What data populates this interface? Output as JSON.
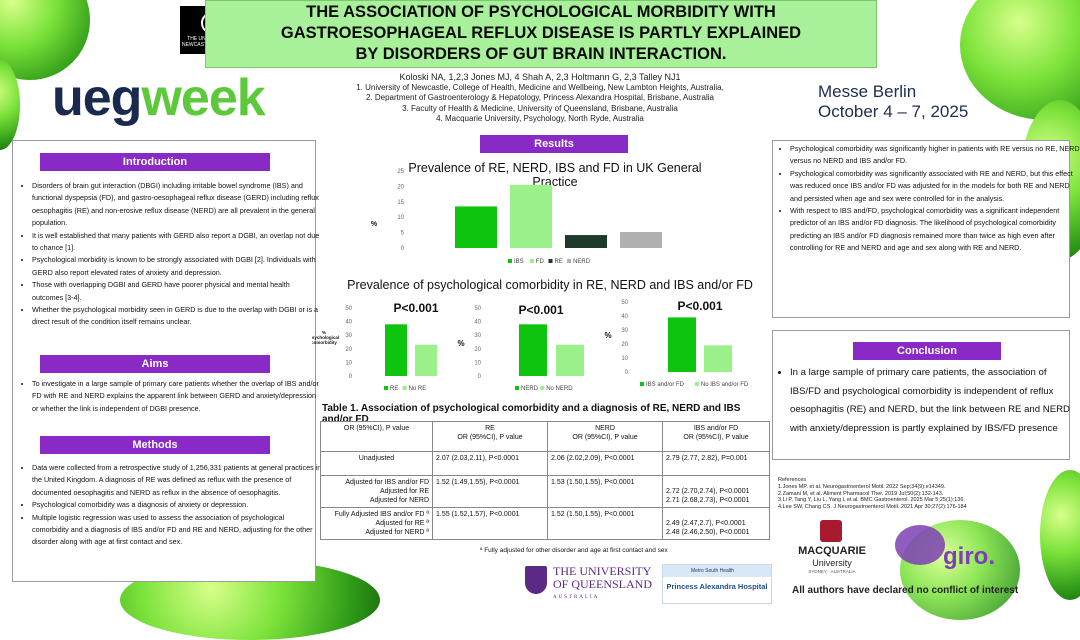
{
  "header": {
    "title_line1": "THE ASSOCIATION OF PSYCHOLOGICAL MORBIDITY WITH",
    "title_line2": "GASTROESOPHAGEAL REFLUX DISEASE IS PARTLY EXPLAINED",
    "title_line3": "BY DISORDERS OF GUT BRAIN INTERACTION.",
    "newcastle_logo_text": "THE UNIVERSITY OF NEWCASTLE AUSTRALIA",
    "ueg": "ueg",
    "week": "week",
    "venue_line1": "Messe Berlin",
    "venue_line2": "October 4 – 7, 2025"
  },
  "authors": {
    "names": "Koloski NA, 1,2,3 Jones MJ, 4 Shah A, 2,3 Holtmann G, 2,3 Talley NJ1",
    "aff1": "1. University of Newcastle, College of Health, Medicine and Wellbeing, New Lambton Heights, Australia,",
    "aff2": "2. Department of Gastroenterology & Hepatology, Princess Alexandra Hospital, Brisbane, Australia",
    "aff3": "3. Faculty of Health & Medicine, University of Queensland, Brisbane, Australia",
    "aff4": "4. Macquarie University, Psychology, North Ryde, Australia"
  },
  "introduction": {
    "heading": "Introduction",
    "bullets": [
      "Disorders of brain gut interaction (DBGI) including irritable bowel syndrome (IBS) and  functional dyspepsia (FD), and gastro-oesophageal reflux disease (GERD) including  reflux oesophagitis (RE) and non-erosive reflux disease (NERD) are all prevalent in the  general population.",
      "It is well established that many patients with GERD also report a DGBI, an overlap not due to chance [1].",
      "Psychological morbidity is known to be strongly associated with DGBI [2]. Individuals  with GERD also report elevated rates of anxiety and depression.",
      "Those with overlapping DGBI and GERD have poorer physical and mental health outcomes [3-4].",
      "Whether the psychological morbidity seen in GERD is due to the overlap with DGBI or  is a direct result of the condition itself remains unclear."
    ]
  },
  "aims": {
    "heading": "Aims",
    "bullets": [
      "To investigate in a large sample of primary care patients whether the overlap of IBS and/or FD with RE and NERD explains the apparent link between GERD and anxiety/depression or whether the link is independent of DGBI presence."
    ]
  },
  "methods": {
    "heading": "Methods",
    "bullets": [
      "Data were collected from a retrospective study of 1,256,331 patients at general practices in the United Kingdom. A diagnosis of RE was defined as reflux with the presence of documented oesophagitis and NERD as reflux in the absence of oesophagitis.",
      "Psychological comorbidity was a diagnosis of anxiety or depression.",
      "Multiple logistic regression was used to assess the association of psychological comorbidity and a diagnosis of IBS and/or FD and RE and NERD, adjusting for the other disorder along with age at first contact and sex."
    ]
  },
  "results": {
    "heading": "Results",
    "chart1_title": "Prevalence of RE, NERD, IBS and FD in UK General Practice",
    "chart2_title": "Prevalence of psychological comorbidity in RE, NERD and IBS and/or FD",
    "table_title": "Table 1. Association of psychological comorbidity and a diagnosis of RE, NERD and IBS and/or FD",
    "footnote": "ª Fully adjusted for other disorder and age at first contact and sex"
  },
  "chart_data": [
    {
      "type": "bar",
      "title": "Prevalence of RE, NERD, IBS and FD in UK General Practice",
      "categories": [
        "IBS",
        "FD",
        "RE",
        "NERD"
      ],
      "values": [
        13.5,
        20.5,
        4.2,
        5.2
      ],
      "colors": [
        "#0fc40f",
        "#9af08a",
        "#1f3a2a",
        "#b0b0b0"
      ],
      "ylabel": "%",
      "yticks": [
        0,
        5,
        10,
        15,
        20,
        25
      ],
      "ylim": [
        0,
        25
      ],
      "legend": [
        "IBS",
        "FD",
        "RE",
        "NERD"
      ]
    },
    {
      "type": "bar",
      "categories": [
        "RE",
        "No RE"
      ],
      "values": [
        38,
        23
      ],
      "colors": [
        "#0fc40f",
        "#9af08a"
      ],
      "annotation": "P<0.001",
      "ylabel": "% Psychological comorbidity",
      "yticks": [
        0,
        10,
        20,
        30,
        40,
        50
      ],
      "ylim": [
        0,
        50
      ],
      "legend": [
        "RE",
        "No RE"
      ]
    },
    {
      "type": "bar",
      "categories": [
        "NERD",
        "No NERD"
      ],
      "values": [
        38,
        23
      ],
      "colors": [
        "#0fc40f",
        "#9af08a"
      ],
      "annotation": "P<0.001",
      "ylabel": "%",
      "yticks": [
        0,
        10,
        20,
        30,
        40,
        50
      ],
      "ylim": [
        0,
        50
      ],
      "legend": [
        "NERD",
        "No NERD"
      ]
    },
    {
      "type": "bar",
      "categories": [
        "IBS and/or FD",
        "No IBS and/or FD"
      ],
      "values": [
        39,
        19
      ],
      "colors": [
        "#0fc40f",
        "#9af08a"
      ],
      "annotation": "P<0.001",
      "ylabel": "%",
      "yticks": [
        0,
        10,
        20,
        30,
        40,
        50
      ],
      "ylim": [
        0,
        50
      ],
      "legend": [
        "IBS and/or FD",
        "No IBS and/or FD"
      ]
    }
  ],
  "table": {
    "col0": "OR (95%CI), P value",
    "col1a": "RE",
    "col1b": "OR (95%CI), P value",
    "col2a": "NERD",
    "col2b": "OR (95%CI), P value",
    "col3a": "IBS and/or FD",
    "col3b": "OR (95%CI), P value",
    "row1": {
      "label": "Unadjusted",
      "re": "2.07 (2.03,2.11), P<0.0001",
      "nerd": "2.06 (2.02,2.09), P<0.0001",
      "ibs": "2.79 (2.77, 2.82), P=0.001"
    },
    "row2": {
      "label1": "Adjusted for IBS and/or FD",
      "label2": "Adjusted for RE",
      "label3": "Adjusted for NERD",
      "re": "1.52 (1.49,1.55), P<0.0001",
      "nerd": "1.53 (1.50,1.55), P<0.0001",
      "ibs1": "2.72 (2.70,2.74), P<0.0001",
      "ibs2": "2.71 (2.68,2.73), P<0.0001"
    },
    "row3": {
      "label1": "Fully Adjusted IBS and/or FD ª",
      "label2": "Adjusted for RE ª",
      "label3": "Adjusted for NERD ª",
      "re": "1.55 (1.52,1.57), P<0.0001",
      "nerd": "1.52 (1.50,1.55), P<0.0001",
      "ibs1": "2.49 (2.47,2.7), P<0.0001",
      "ibs2": "2.48 (2.46,2.50), P<0.0001"
    }
  },
  "discussion": {
    "bullets": [
      "Psychological comorbidity was significantly higher in patients with RE versus no RE, NERD versus no NERD and IBS and/or FD.",
      "Psychological comorbidity was significantly associated with RE and NERD, but this effect was reduced once IBS and/or FD was adjusted for in the models for both RE and NERD and persisted when age and sex were controlled for in the analysis.",
      "With respect to IBS and/FD, psychological comorbidity was a significant independent predictor of an IBS and/or FD diagnosis. The likelihood of psychological comorbidity predicting an IBS and/or FD diagnosis remained more than twice as high even after controlling for RE and NERD and age and sex along with RE and NERD."
    ]
  },
  "conclusion": {
    "heading": "Conclusion",
    "text": "In a large sample of primary care patients, the association of IBS/FD and psychological comorbidity is independent of reflux oesophagitis (RE) and NERD, but the link between RE and NERD with anxiety/depression is partly explained by IBS/FD presence"
  },
  "references": {
    "heading": "References",
    "items": [
      "1.Jones MP. et al.  Neurogastroenterol Motil. 2022 Sep;34(9):e14349.",
      "2.Zamani M, et al. Aliment Pharmacol Ther. 2019 Jul;50(2):132-143.",
      "3.Li P, Tang Y, Liu L, Yang L et al. BMC Gastroenterol. 2025 Mar 5;25(1):136.",
      "4.Lee SW, Chang CS. J Neurogastroenterol Motil. 2021 Apr 30;27(2):176-184"
    ]
  },
  "logos": {
    "uq_line1": "THE UNIVERSITY",
    "uq_line2": "OF QUEENSLAND",
    "uq_line3": "AUSTRALIA",
    "pah_top": "Metro South Health",
    "pah_name": "Princess Alexandra Hospital",
    "mq_line1": "MACQUARIE",
    "mq_line2": "University",
    "mq_line3": "SYDNEY · AUSTRALIA",
    "giro": "giro."
  },
  "declaration": "All authors have declared no conflict of interest"
}
